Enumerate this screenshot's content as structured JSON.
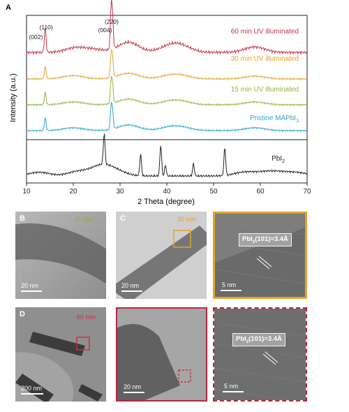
{
  "chart_data": {
    "type": "line",
    "panel_label": "A",
    "xlabel": "2 Theta (degree)",
    "ylabel": "Intensity (a.u.)",
    "xlim": [
      10,
      70
    ],
    "xticks": [
      10,
      20,
      30,
      40,
      50,
      60,
      70
    ],
    "ylim": [
      0,
      1
    ],
    "grid": false,
    "series": [
      {
        "name": "60 min UV illuminated",
        "color": "#c8324a",
        "peaks": [
          {
            "x": 14.0,
            "h": 0.55
          },
          {
            "x": 20.5,
            "h": 0.1
          },
          {
            "x": 24.5,
            "h": 0.06
          },
          {
            "x": 28.1,
            "h": 0.9
          },
          {
            "x": 28.4,
            "h": 0.6
          },
          {
            "x": 31.8,
            "h": 0.22
          },
          {
            "x": 40.6,
            "h": 0.12
          },
          {
            "x": 43.1,
            "h": 0.12
          },
          {
            "x": 58.8,
            "h": 0.12
          }
        ]
      },
      {
        "name": "30 min UV illuminated",
        "color": "#e1a32d",
        "peaks": [
          {
            "x": 14.0,
            "h": 0.45
          },
          {
            "x": 20.0,
            "h": 0.12
          },
          {
            "x": 28.1,
            "h": 0.8
          },
          {
            "x": 28.4,
            "h": 0.6
          },
          {
            "x": 31.8,
            "h": 0.2
          },
          {
            "x": 40.6,
            "h": 0.1
          },
          {
            "x": 43.1,
            "h": 0.1
          },
          {
            "x": 58.8,
            "h": 0.1
          }
        ]
      },
      {
        "name": "15 min UV illuminated",
        "color": "#90b73a",
        "peaks": [
          {
            "x": 14.0,
            "h": 0.45
          },
          {
            "x": 20.0,
            "h": 0.1
          },
          {
            "x": 28.1,
            "h": 0.8
          },
          {
            "x": 28.4,
            "h": 0.55
          },
          {
            "x": 31.8,
            "h": 0.2
          },
          {
            "x": 40.6,
            "h": 0.1
          },
          {
            "x": 43.1,
            "h": 0.1
          },
          {
            "x": 58.8,
            "h": 0.1
          }
        ]
      },
      {
        "name": "Pristine MAPbI",
        "name_sub": "3",
        "color": "#2aa7cf",
        "peaks": [
          {
            "x": 14.0,
            "h": 0.45
          },
          {
            "x": 20.0,
            "h": 0.1
          },
          {
            "x": 28.1,
            "h": 0.8
          },
          {
            "x": 28.4,
            "h": 0.55
          },
          {
            "x": 31.8,
            "h": 0.2
          },
          {
            "x": 40.6,
            "h": 0.1
          },
          {
            "x": 43.1,
            "h": 0.1
          },
          {
            "x": 58.8,
            "h": 0.1
          }
        ]
      },
      {
        "name": "PbI",
        "name_sub": "2",
        "color": "#222222",
        "peaks": [
          {
            "x": 12.7,
            "h": 0.12
          },
          {
            "x": 21.0,
            "h": 0.14
          },
          {
            "x": 25.9,
            "h": 0.3
          },
          {
            "x": 26.6,
            "h": 1.0
          },
          {
            "x": 29.0,
            "h": 0.15
          },
          {
            "x": 34.4,
            "h": 0.7
          },
          {
            "x": 38.7,
            "h": 1.0
          },
          {
            "x": 39.7,
            "h": 0.35
          },
          {
            "x": 45.7,
            "h": 0.4
          },
          {
            "x": 52.4,
            "h": 0.9
          },
          {
            "x": 56.6,
            "h": 0.12
          },
          {
            "x": 61.0,
            "h": 0.1
          },
          {
            "x": 64.0,
            "h": 0.1
          },
          {
            "x": 68.0,
            "h": 0.1
          }
        ]
      }
    ],
    "annotations": [
      {
        "text": "(002)",
        "x": 12.0
      },
      {
        "text": "(110)",
        "x": 14.2
      },
      {
        "text": "(004)",
        "x": 26.8
      },
      {
        "text": "(220)",
        "x": 28.2
      }
    ]
  },
  "panels": {
    "B": {
      "label": "B",
      "time": "15 min",
      "time_color": "#8fb13a",
      "scale": "20 nm"
    },
    "C": {
      "label": "C",
      "time": "30 min",
      "time_color": "#e1a32d",
      "scale": "20 nm"
    },
    "C_zoom": {
      "scale": "5 nm",
      "lattice_main": "PbI",
      "lattice_sub": "2",
      "lattice_rest": "(101)=3.4Å",
      "border_color": "#e1a32d"
    },
    "D": {
      "label": "D",
      "time": "60 min",
      "time_color": "#c8324a",
      "scale": "200 nm"
    },
    "D_mid": {
      "scale": "20 nm",
      "border_color": "#b4283c"
    },
    "D_zoom": {
      "scale": "5 nm",
      "lattice_main": "PbI",
      "lattice_sub": "2",
      "lattice_rest": "(101)=3.4Å",
      "border_color": "#b4283c"
    }
  }
}
